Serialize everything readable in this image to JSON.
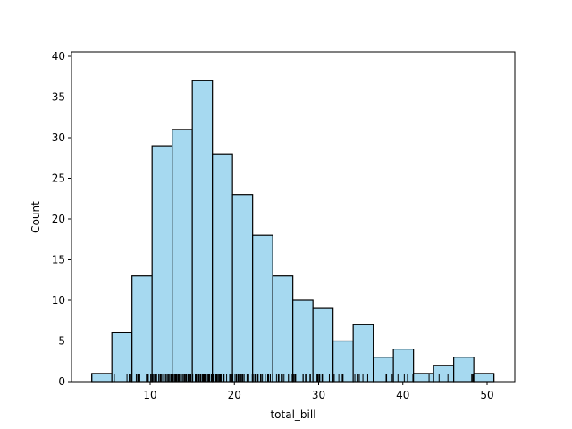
{
  "chart_data": {
    "type": "bar",
    "title": "",
    "xlabel": "total_bill",
    "ylabel": "Count",
    "xlim": [
      0.68,
      53.2
    ],
    "ylim": [
      0,
      40.5
    ],
    "xticks": [
      10,
      20,
      30,
      40,
      50
    ],
    "yticks": [
      0,
      5,
      10,
      15,
      20,
      25,
      30,
      35,
      40
    ],
    "bin_start": 3.07,
    "bin_width": 2.387,
    "bin_edges": [
      3.07,
      5.457,
      7.844,
      10.231,
      12.618,
      15.005,
      17.392,
      19.779,
      22.166,
      24.553,
      26.94,
      29.327,
      31.714,
      34.101,
      36.488,
      38.875,
      41.262,
      43.649,
      46.036,
      48.423,
      50.81
    ],
    "values": [
      1,
      6,
      13,
      29,
      31,
      37,
      28,
      23,
      18,
      13,
      10,
      9,
      5,
      7,
      3,
      4,
      1,
      2,
      3,
      1
    ],
    "bar_color": "#a6d9f0",
    "edge_color": "#000000",
    "rug": true,
    "rug_values": [
      3.07,
      5.75,
      7.25,
      7.51,
      7.56,
      7.74,
      8.35,
      8.51,
      8.52,
      8.58,
      8.77,
      9.55,
      9.6,
      9.68,
      9.78,
      10.07,
      10.09,
      10.27,
      10.29,
      10.33,
      10.34,
      10.51,
      10.59,
      10.63,
      10.65,
      10.77,
      11.02,
      11.17,
      11.24,
      11.35,
      11.38,
      11.59,
      11.61,
      11.69,
      11.87,
      12.02,
      12.03,
      12.16,
      12.26,
      12.43,
      12.46,
      12.54,
      12.6,
      12.66,
      12.69,
      12.74,
      12.76,
      12.9,
      13.0,
      13.03,
      13.13,
      13.27,
      13.28,
      13.37,
      13.39,
      13.42,
      13.51,
      13.81,
      13.94,
      14.07,
      14.15,
      14.26,
      14.31,
      14.48,
      14.52,
      14.73,
      14.78,
      14.83,
      15.01,
      15.04,
      15.06,
      15.36,
      15.38,
      15.42,
      15.48,
      15.53,
      15.69,
      15.77,
      15.81,
      15.95,
      15.98,
      16.0,
      16.04,
      16.21,
      16.27,
      16.29,
      16.31,
      16.4,
      16.43,
      16.45,
      16.47,
      16.49,
      16.58,
      16.66,
      16.82,
      16.93,
      16.97,
      16.99,
      17.07,
      17.26,
      17.29,
      17.31,
      17.46,
      17.47,
      17.51,
      17.59,
      17.78,
      17.81,
      17.82,
      17.89,
      17.92,
      18.04,
      18.15,
      18.24,
      18.26,
      18.28,
      18.29,
      18.35,
      18.43,
      18.64,
      18.69,
      18.71,
      18.78,
      19.08,
      19.44,
      19.49,
      19.65,
      19.77,
      19.81,
      19.82,
      20.08,
      20.23,
      20.27,
      20.29,
      20.45,
      20.49,
      20.53,
      20.65,
      20.69,
      20.76,
      20.9,
      20.92,
      21.01,
      21.16,
      21.5,
      21.58,
      21.7,
      22.12,
      22.23,
      22.42,
      22.49,
      22.67,
      22.75,
      22.76,
      22.82,
      23.1,
      23.17,
      23.33,
      23.68,
      23.95,
      24.01,
      24.06,
      24.08,
      24.27,
      24.52,
      24.55,
      24.59,
      25.0,
      25.21,
      25.28,
      25.29,
      25.56,
      25.71,
      25.89,
      26.41,
      26.59,
      26.86,
      26.88,
      27.05,
      27.18,
      27.2,
      27.28,
      28.15,
      28.17,
      28.44,
      28.55,
      28.97,
      29.03,
      29.8,
      29.85,
      29.93,
      30.06,
      30.14,
      30.4,
      30.46,
      31.27,
      31.71,
      31.85,
      32.4,
      32.68,
      32.83,
      32.9,
      34.3,
      34.63,
      34.65,
      34.81,
      34.83,
      35.26,
      35.83,
      38.01,
      38.07,
      38.73,
      39.42,
      40.17,
      40.55,
      41.19,
      43.11,
      44.3,
      45.35,
      48.17,
      48.27,
      48.33,
      50.81
    ]
  }
}
